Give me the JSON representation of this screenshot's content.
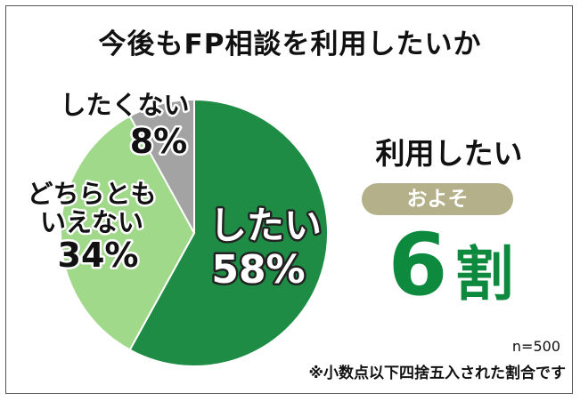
{
  "title": "今後もFP相談を利用したいか",
  "chart_data": {
    "type": "pie",
    "slices": [
      {
        "label": "したい",
        "value": 58,
        "value_label": "58%",
        "color": "#1e8c45"
      },
      {
        "label": "どちらとも\nいえない",
        "value": 34,
        "value_label": "34%",
        "color": "#a1d98b"
      },
      {
        "label": "したくない",
        "value": 8,
        "value_label": "8%",
        "color": "#a3a3a3"
      }
    ]
  },
  "summary": {
    "heading": "利用したい",
    "pill": "およそ",
    "big_number": "6",
    "big_unit": "割"
  },
  "footer": {
    "n": "n=500",
    "note": "※小数点以下四捨五入された割合です"
  }
}
